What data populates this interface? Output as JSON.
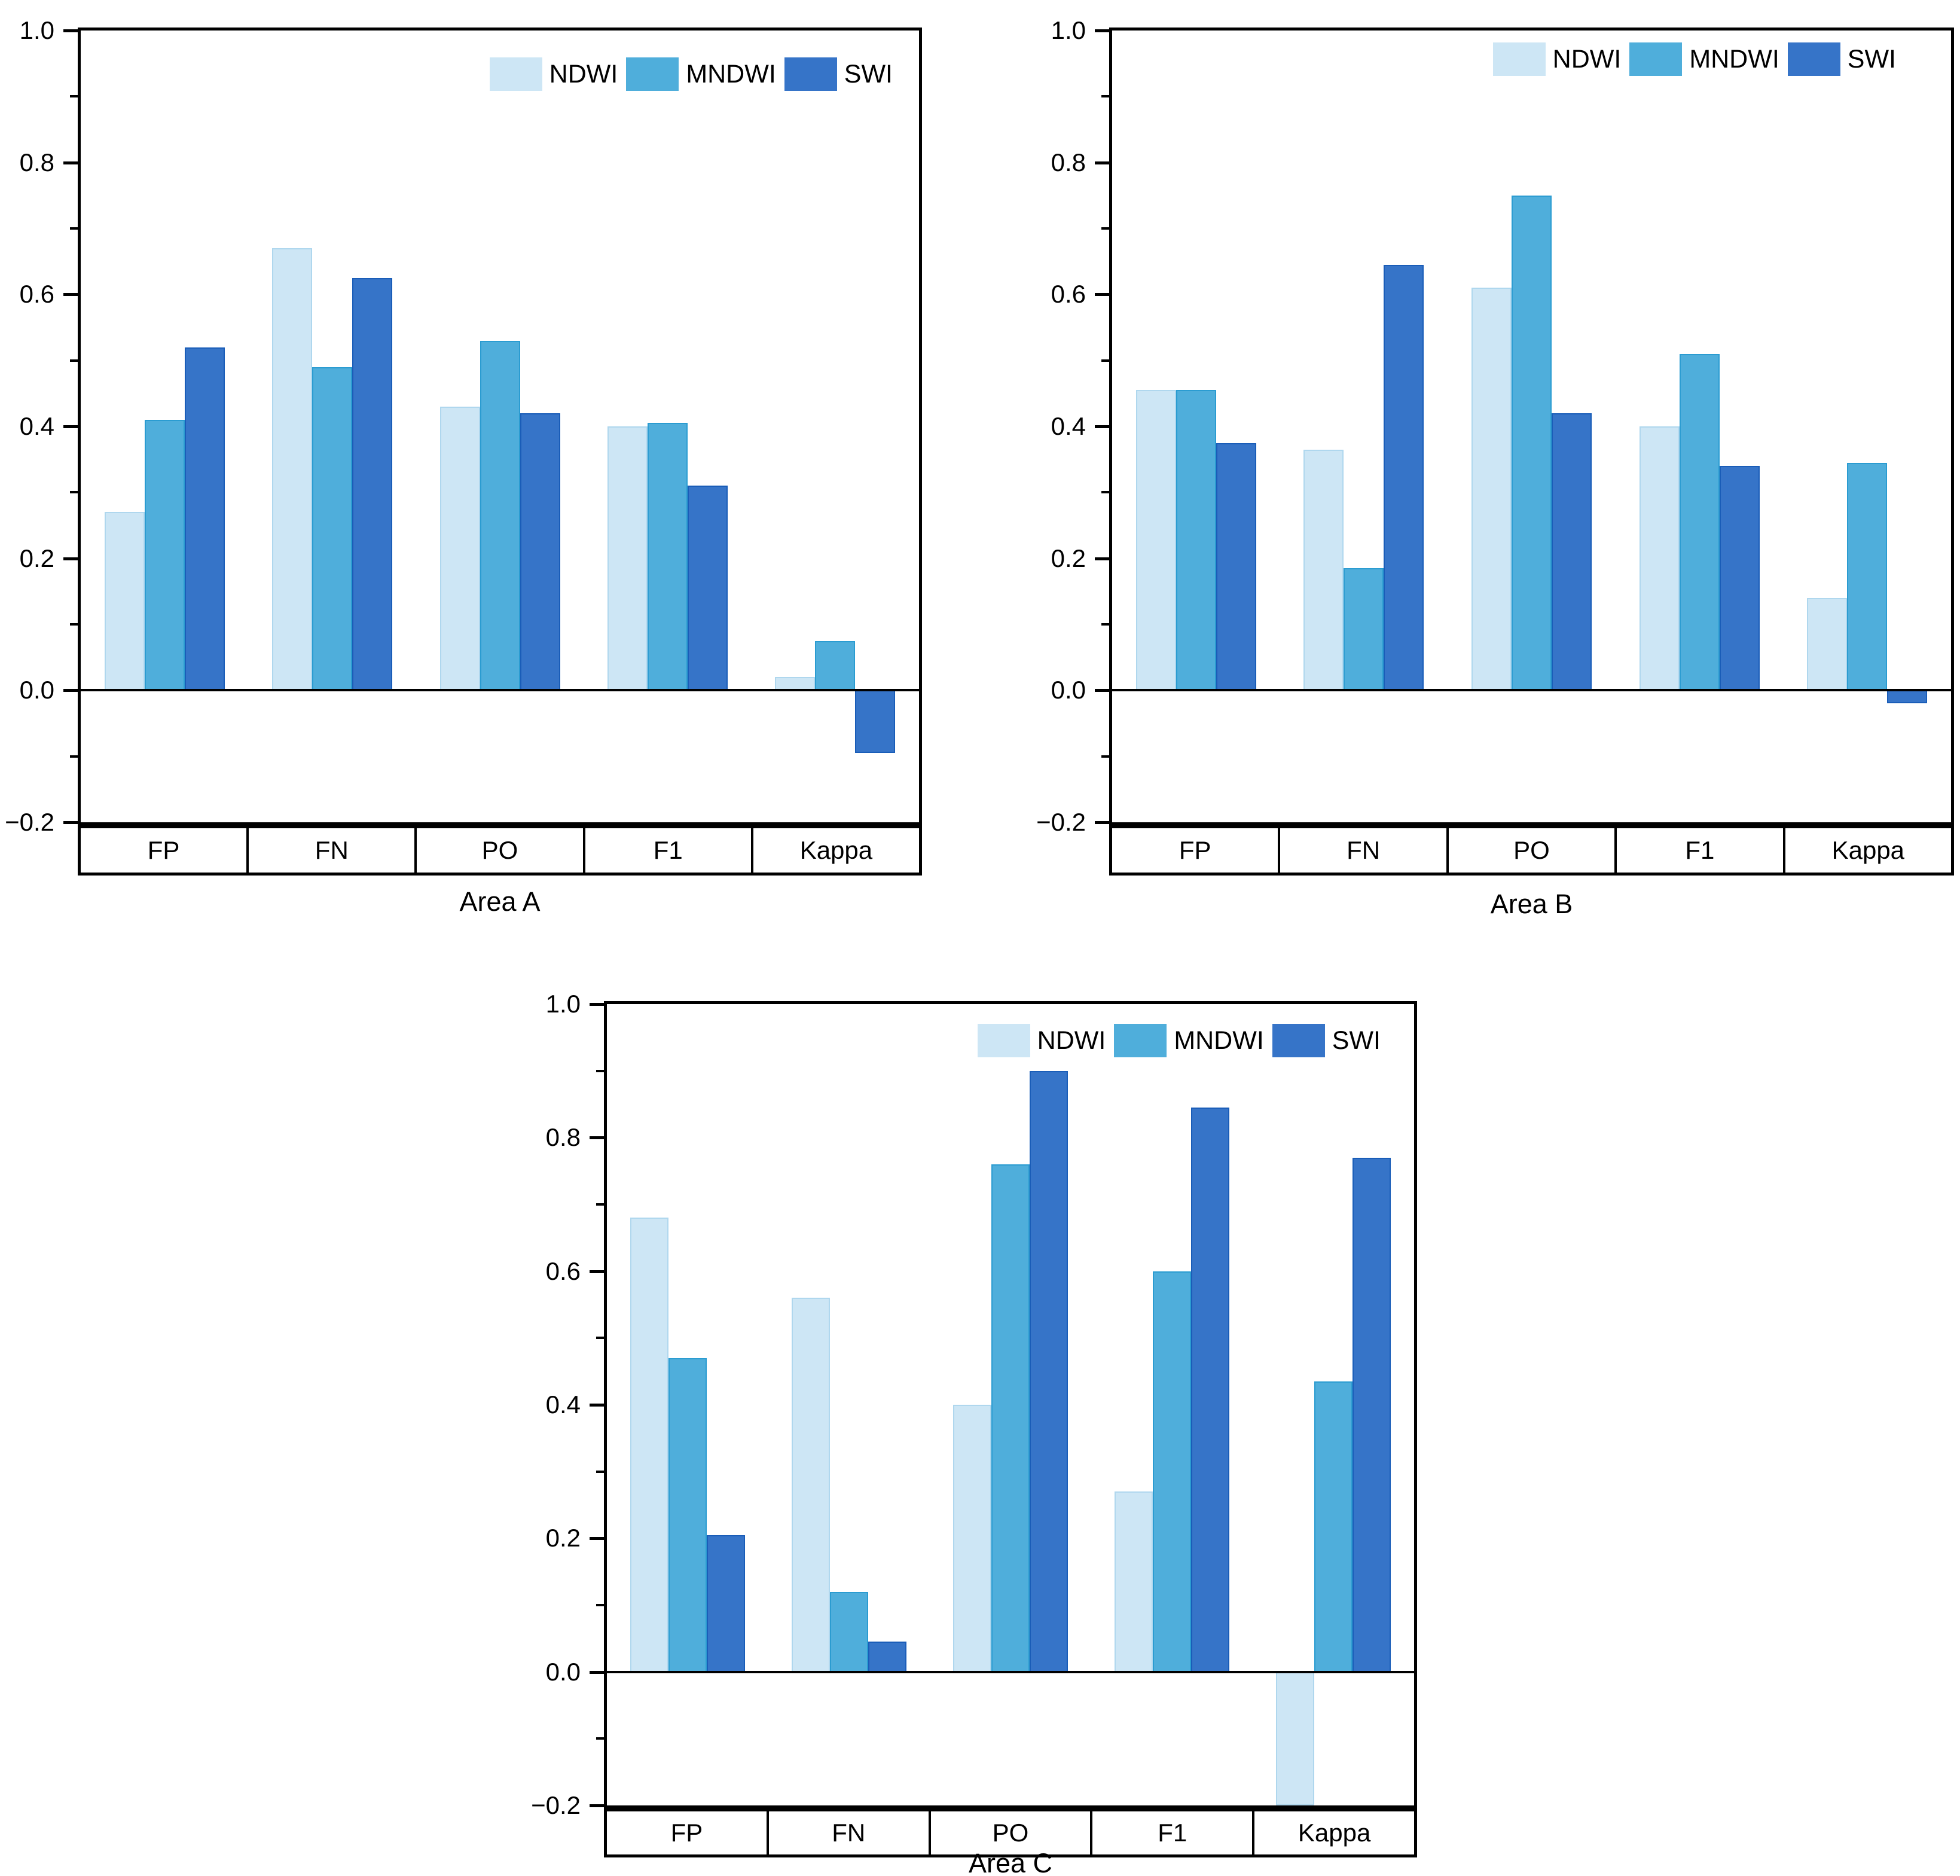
{
  "legend": {
    "items": [
      {
        "label": "NDWI",
        "fill": "#CDE6F5",
        "edge": "#AFD7EE"
      },
      {
        "label": "MNDWI",
        "fill": "#4FAEDB",
        "edge": "#2B9CD1"
      },
      {
        "label": "SWI",
        "fill": "#3674C8",
        "edge": "#1A5DB8"
      }
    ]
  },
  "colors": {
    "axis": "#000000",
    "background": "#ffffff"
  },
  "y_axis": {
    "min": -0.2,
    "max": 1.0,
    "major_step": 0.2,
    "minor_step": 0.1,
    "tick_labels": [
      "1.0",
      "0.8",
      "0.6",
      "0.4",
      "0.2",
      "0.0",
      "−0.2"
    ]
  },
  "chart_data": [
    {
      "type": "bar",
      "title": "Area A",
      "categories": [
        "FP",
        "FN",
        "PO",
        "F1",
        "Kappa"
      ],
      "ylim": [
        -0.2,
        1.0
      ],
      "grid": false,
      "legend_position": "top-right",
      "series": [
        {
          "name": "NDWI",
          "values": [
            0.27,
            0.67,
            0.43,
            0.4,
            0.02
          ]
        },
        {
          "name": "MNDWI",
          "values": [
            0.41,
            0.49,
            0.53,
            0.405,
            0.075
          ]
        },
        {
          "name": "SWI",
          "values": [
            0.52,
            0.625,
            0.42,
            0.31,
            -0.095
          ]
        }
      ]
    },
    {
      "type": "bar",
      "title": "Area B",
      "categories": [
        "FP",
        "FN",
        "PO",
        "F1",
        "Kappa"
      ],
      "ylim": [
        -0.2,
        1.0
      ],
      "grid": false,
      "legend_position": "top-right",
      "series": [
        {
          "name": "NDWI",
          "values": [
            0.455,
            0.365,
            0.61,
            0.4,
            0.14
          ]
        },
        {
          "name": "MNDWI",
          "values": [
            0.455,
            0.185,
            0.75,
            0.51,
            0.345
          ]
        },
        {
          "name": "SWI",
          "values": [
            0.375,
            0.645,
            0.42,
            0.34,
            -0.02
          ]
        }
      ]
    },
    {
      "type": "bar",
      "title": "Area C",
      "categories": [
        "FP",
        "FN",
        "PO",
        "F1",
        "Kappa"
      ],
      "ylim": [
        -0.2,
        1.0
      ],
      "grid": false,
      "legend_position": "top-right",
      "series": [
        {
          "name": "NDWI",
          "values": [
            0.68,
            0.56,
            0.4,
            0.27,
            -0.2
          ]
        },
        {
          "name": "MNDWI",
          "values": [
            0.47,
            0.12,
            0.76,
            0.6,
            0.435
          ]
        },
        {
          "name": "SWI",
          "values": [
            0.205,
            0.045,
            0.9,
            0.845,
            0.77
          ]
        }
      ]
    }
  ]
}
